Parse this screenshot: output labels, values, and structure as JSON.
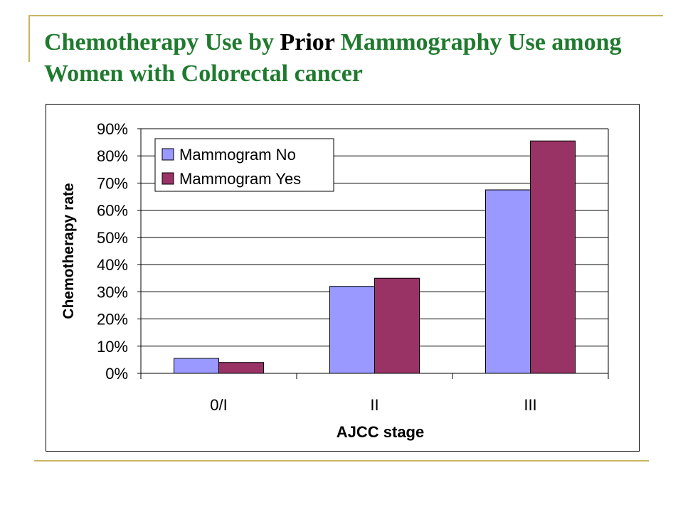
{
  "title": {
    "part1": "Chemotherapy Use by ",
    "part2": "Prior",
    "part3": " Mammography Use among Women with Colorectal cancer"
  },
  "colors": {
    "title_green": "#1f7a2e",
    "accent_rule": "#c8b560",
    "series_no": "#9999ff",
    "series_yes": "#993366"
  },
  "chart_data": {
    "type": "bar",
    "categories": [
      "0/I",
      "II",
      "III"
    ],
    "series": [
      {
        "name": "Mammogram No",
        "values": [
          0.055,
          0.32,
          0.675
        ],
        "color": "#9999ff"
      },
      {
        "name": "Mammogram Yes",
        "values": [
          0.04,
          0.35,
          0.855
        ],
        "color": "#993366"
      }
    ],
    "xlabel": "AJCC stage",
    "ylabel": "Chemotherapy rate",
    "ylim": [
      0,
      0.9
    ],
    "yticks": [
      "0%",
      "10%",
      "20%",
      "30%",
      "40%",
      "50%",
      "60%",
      "70%",
      "80%",
      "90%"
    ],
    "grid": true,
    "legend_position": "top-left"
  }
}
